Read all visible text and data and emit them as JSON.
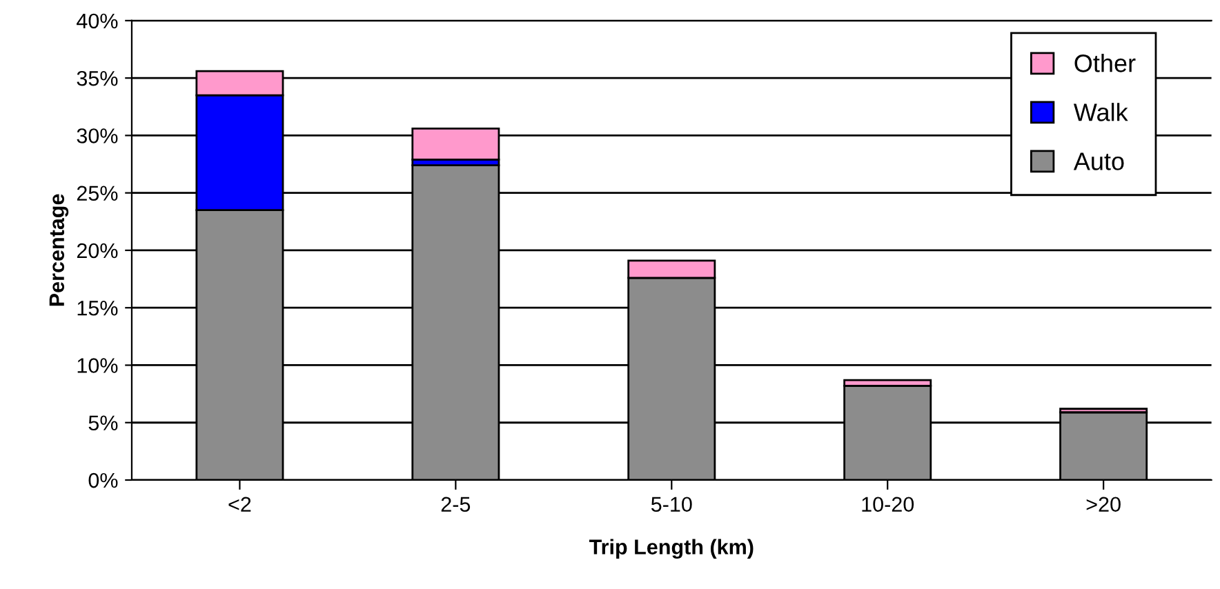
{
  "chart_data": {
    "type": "bar",
    "stacked": true,
    "xlabel": "Trip Length (km)",
    "ylabel": "Percentage",
    "categories": [
      "<2",
      "2-5",
      "5-10",
      "10-20",
      ">20"
    ],
    "series": [
      {
        "name": "Auto",
        "color": "#8c8c8c",
        "values": [
          23.5,
          27.4,
          17.6,
          8.2,
          5.9
        ]
      },
      {
        "name": "Walk",
        "color": "#0000ff",
        "values": [
          10.0,
          0.5,
          0,
          0,
          0
        ]
      },
      {
        "name": "Other",
        "color": "#ff99cc",
        "values": [
          2.1,
          2.7,
          1.5,
          0.5,
          0.3
        ]
      }
    ],
    "ylim": [
      0,
      40
    ],
    "yticks": [
      {
        "value": 0,
        "label": "0%"
      },
      {
        "value": 5,
        "label": "5%"
      },
      {
        "value": 10,
        "label": "10%"
      },
      {
        "value": 15,
        "label": "15%"
      },
      {
        "value": 20,
        "label": "20%"
      },
      {
        "value": 25,
        "label": "25%"
      },
      {
        "value": 30,
        "label": "30%"
      },
      {
        "value": 35,
        "label": "35%"
      },
      {
        "value": 40,
        "label": "40%"
      }
    ],
    "grid": "y",
    "legend": "top right"
  }
}
